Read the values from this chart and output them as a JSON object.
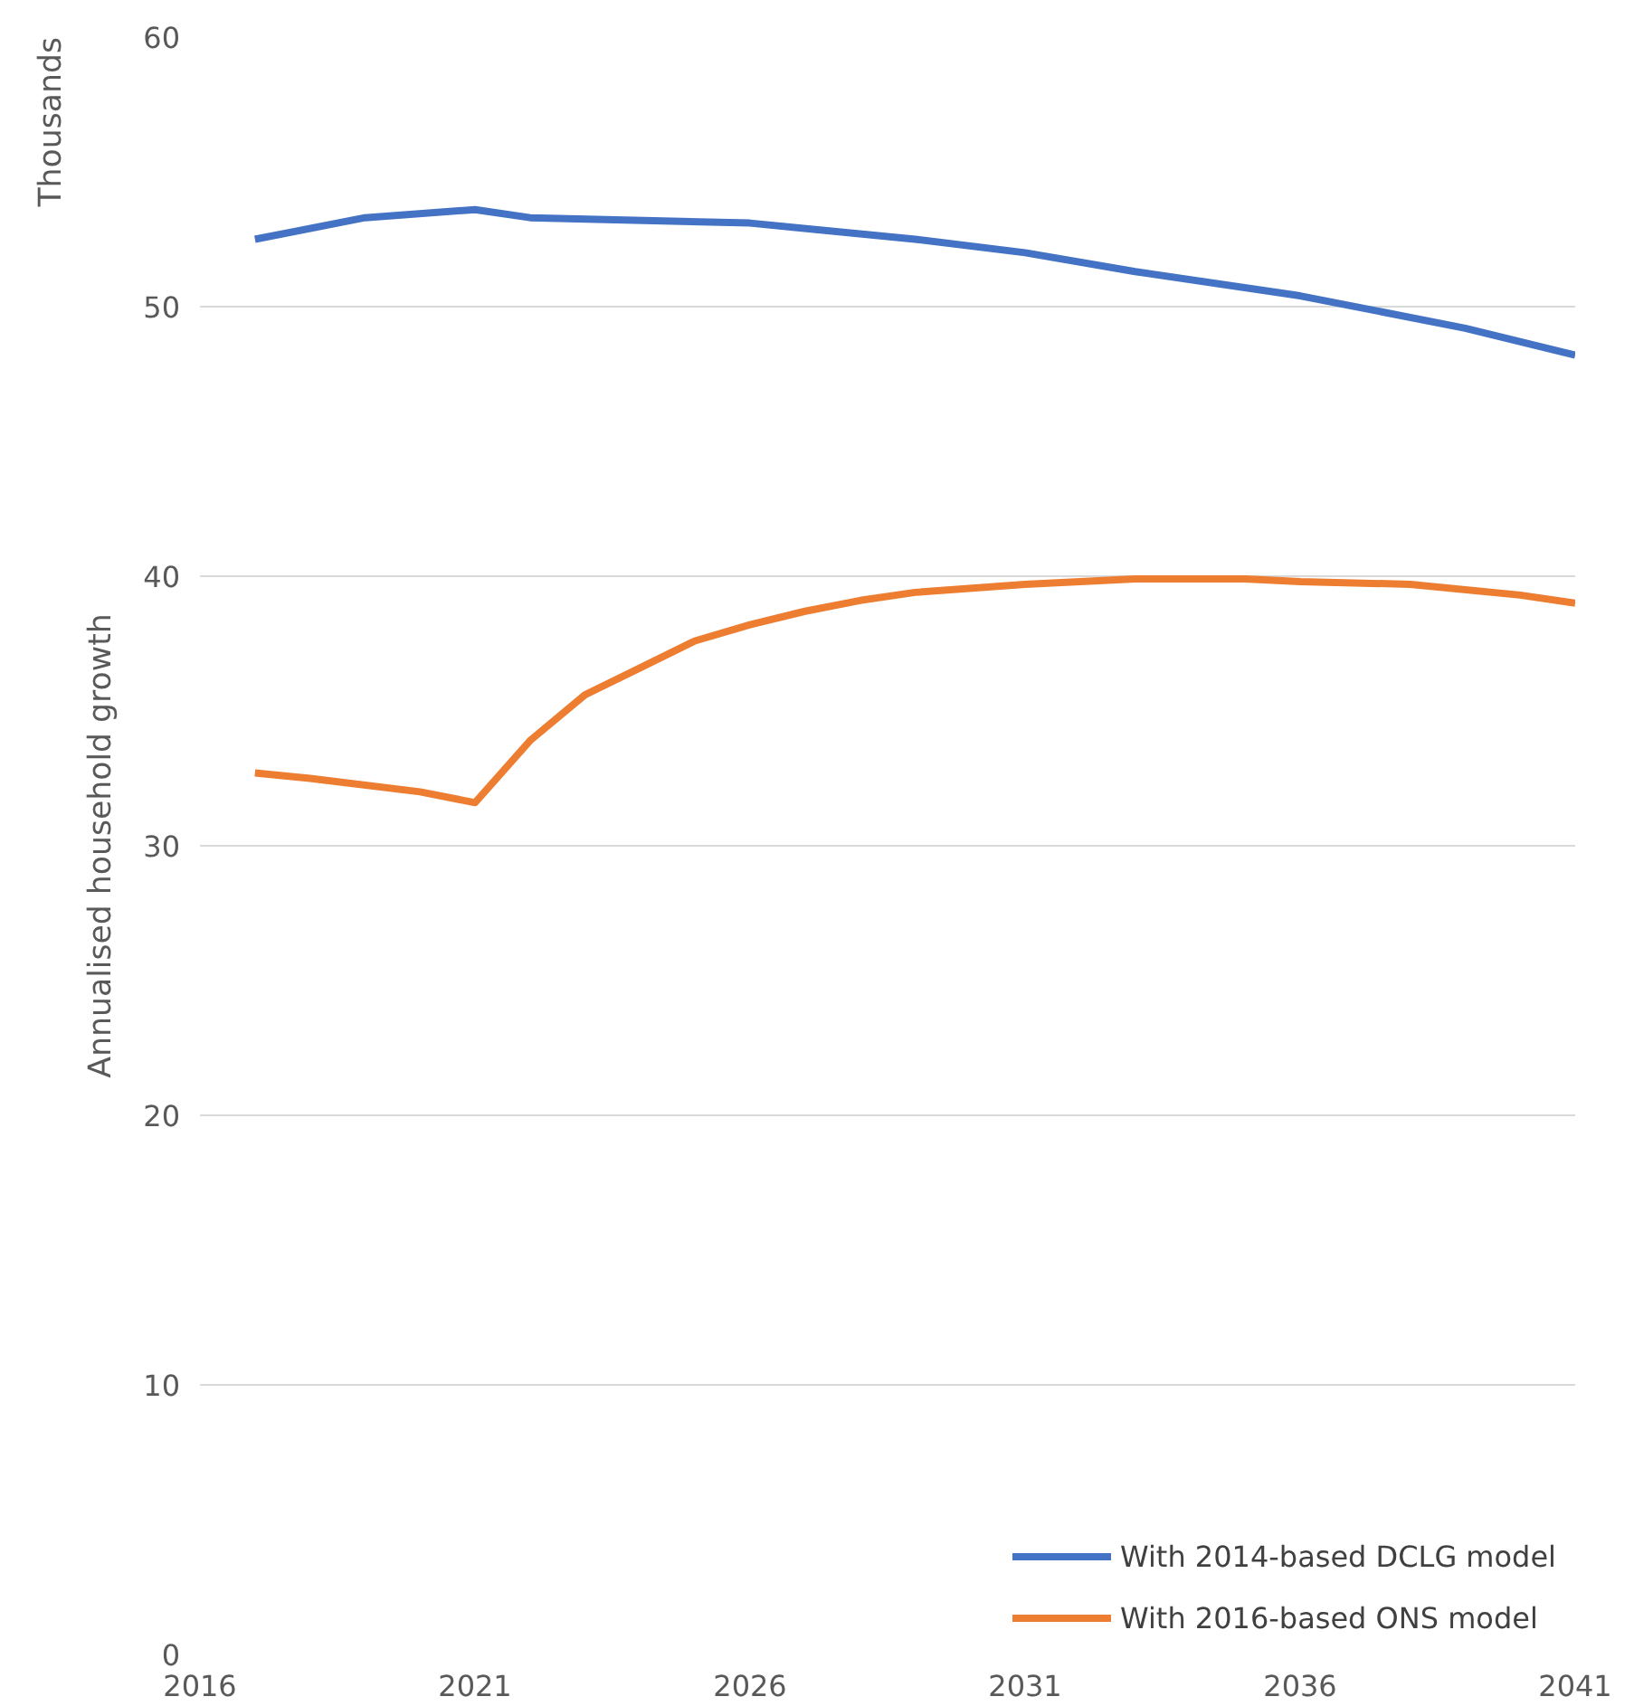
{
  "chart_data": {
    "type": "line",
    "ylabel": "Annualised household growth",
    "annotations": [
      "Thousands"
    ],
    "xlim": [
      2016,
      2041
    ],
    "xticks": [
      2016,
      2021,
      2026,
      2031,
      2036,
      2041
    ],
    "ylim": [
      0,
      60
    ],
    "yticks": [
      0,
      10,
      20,
      30,
      40,
      50,
      60
    ],
    "grid": "y",
    "legend": "bottom right",
    "marker": "none",
    "line_style": "solid",
    "series": [
      {
        "name": "With 2014-based DCLG model",
        "color": "#4472c4",
        "x": [
          2017,
          2019,
          2021,
          2022,
          2026,
          2029,
          2031,
          2033,
          2036,
          2039,
          2041
        ],
        "values": [
          52.5,
          53.3,
          53.6,
          53.3,
          53.1,
          52.5,
          52.0,
          51.3,
          50.4,
          49.2,
          48.2
        ]
      },
      {
        "name": "With 2016-based ONS model",
        "color": "#ed7d31",
        "x": [
          2017,
          2018,
          2020,
          2021,
          2022,
          2023,
          2024,
          2025,
          2026,
          2027,
          2028,
          2029,
          2031,
          2033,
          2035,
          2036,
          2038,
          2040,
          2041
        ],
        "values": [
          32.7,
          32.5,
          32.0,
          31.6,
          33.9,
          35.6,
          36.6,
          37.6,
          38.2,
          38.7,
          39.1,
          39.4,
          39.7,
          39.9,
          39.9,
          39.8,
          39.7,
          39.3,
          39.0
        ]
      }
    ]
  }
}
